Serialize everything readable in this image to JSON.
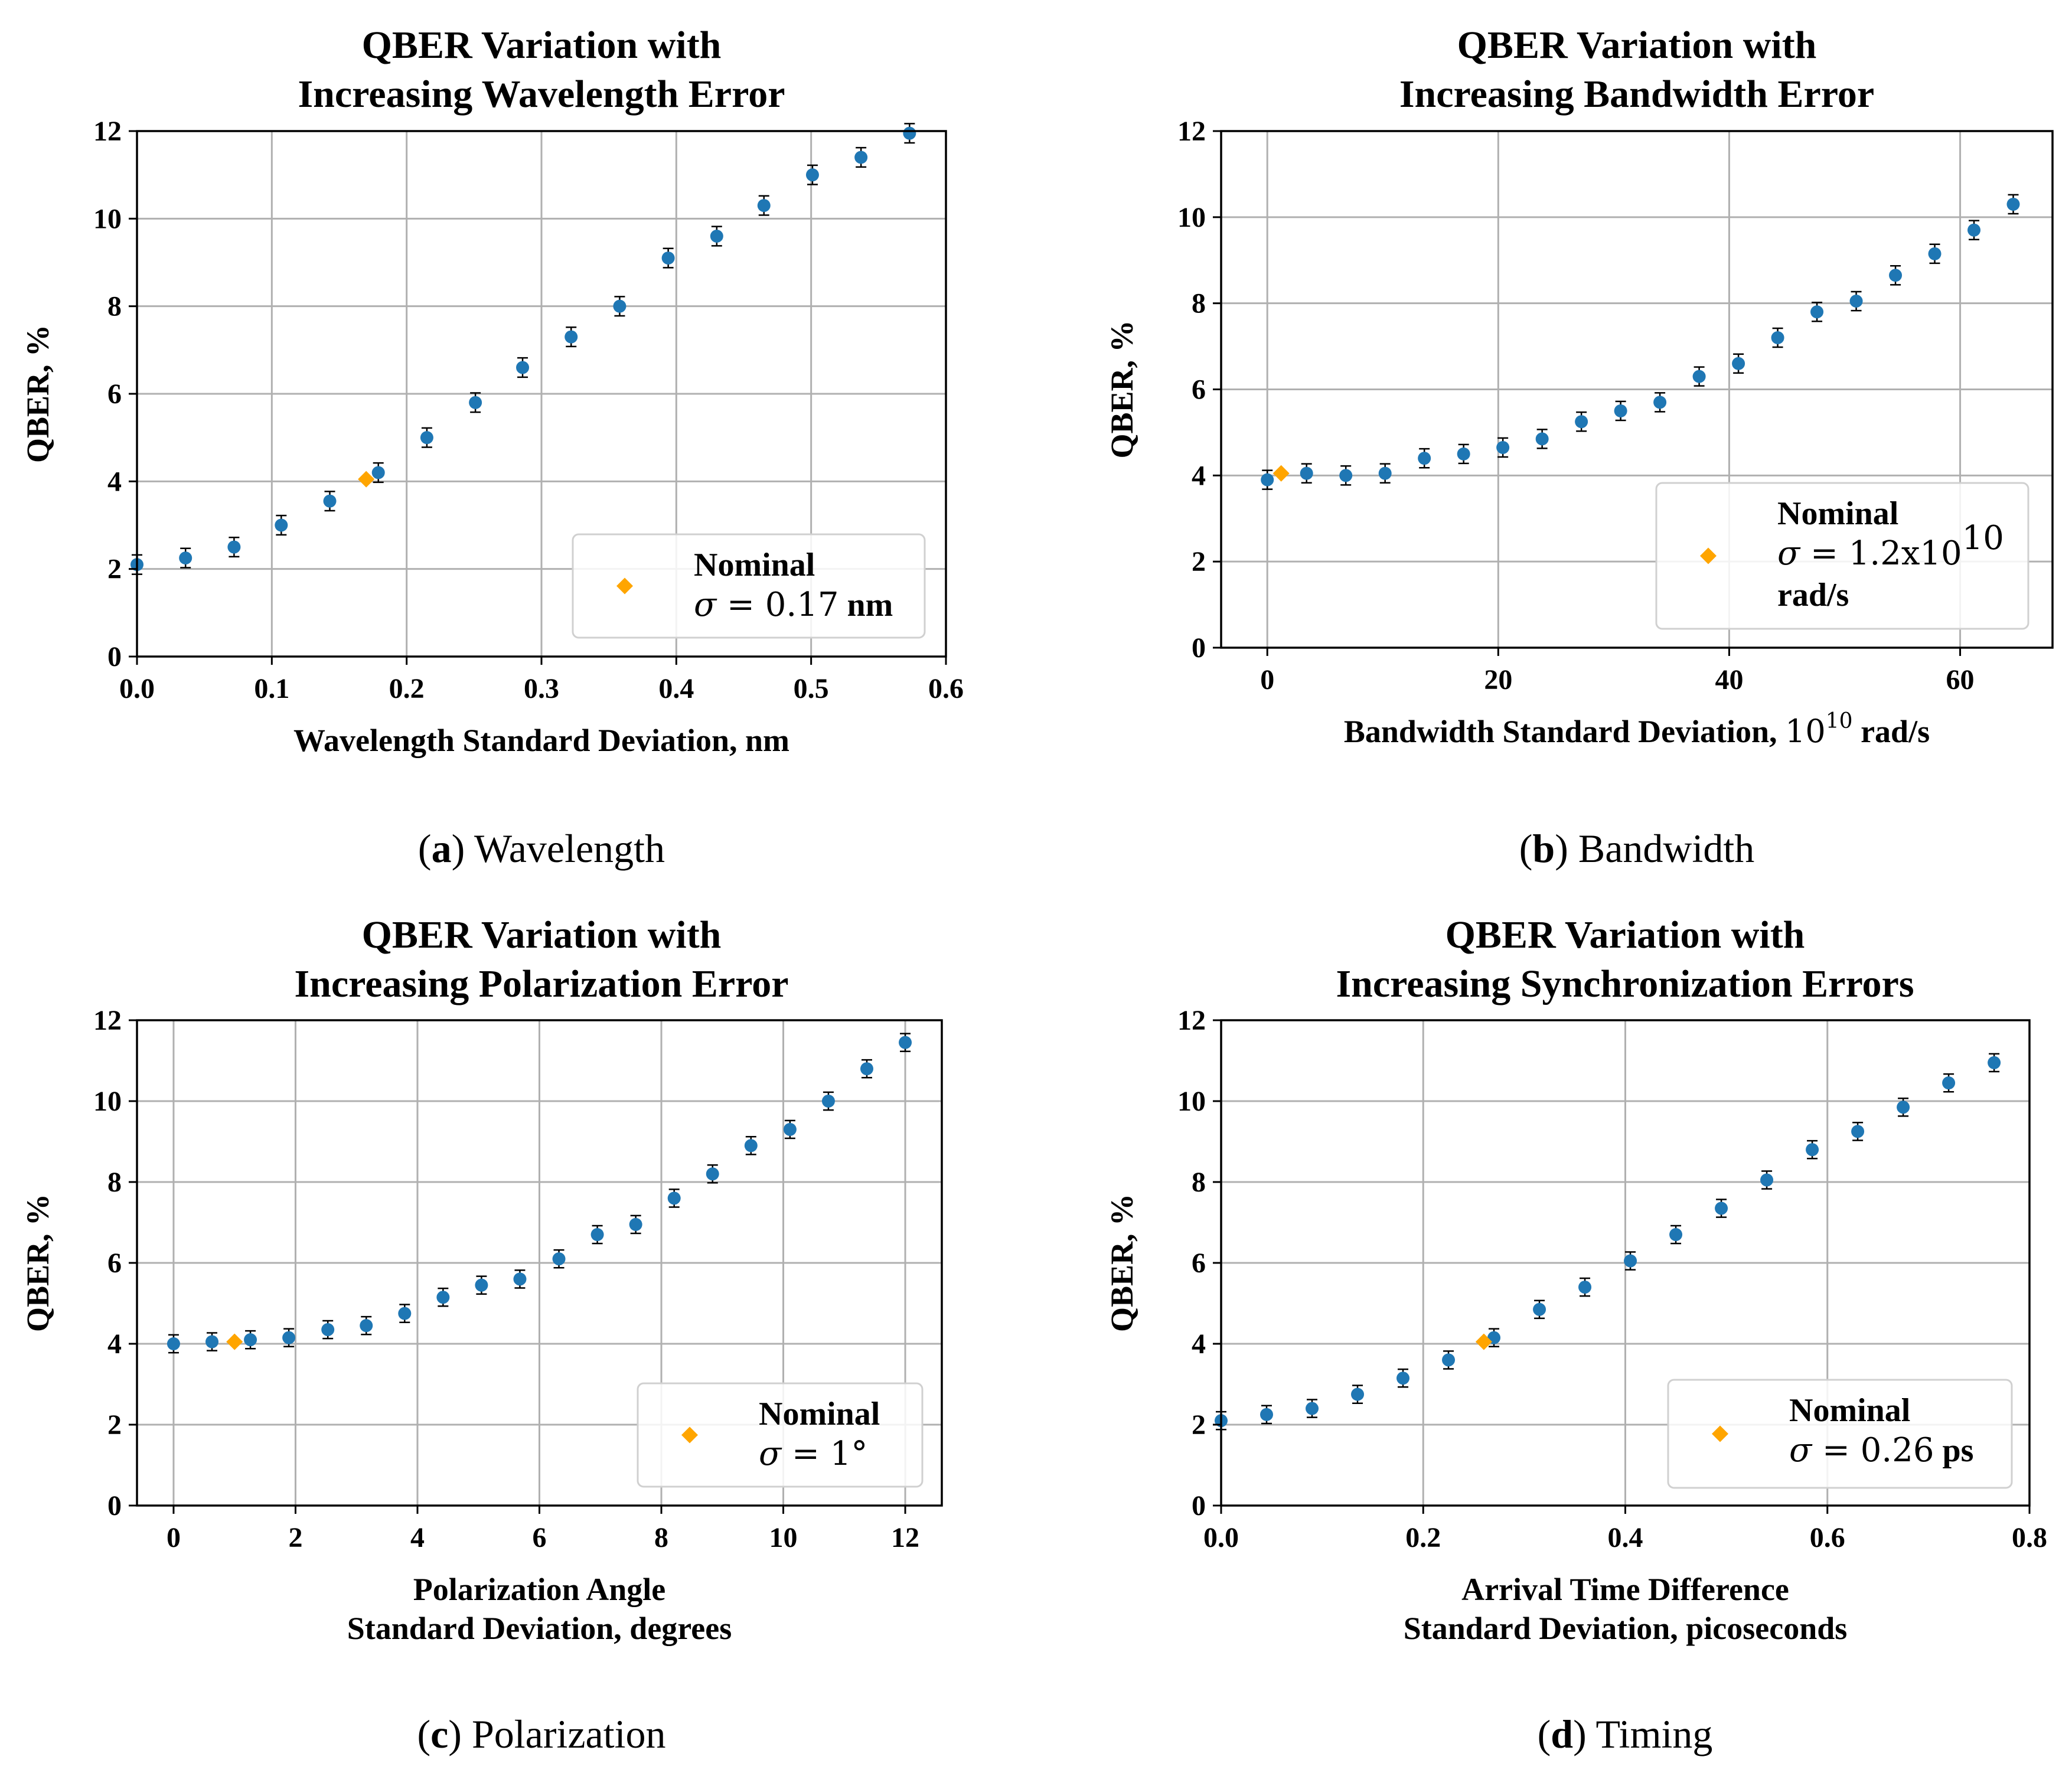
{
  "colors": {
    "data": "#1f77b4",
    "nominal": "#ffa500",
    "grid": "#b0b0b0",
    "axes": "#000000",
    "error": "#000000"
  },
  "chart_data": [
    {
      "id": "a",
      "type": "scatter",
      "title": [
        "QBER Variation with",
        "Increasing Wavelength Error"
      ],
      "xlabel": [
        "Wavelength Standard Deviation, nm"
      ],
      "ylabel": "QBER, %",
      "xlim": [
        0.0,
        0.6
      ],
      "ylim": [
        0,
        12
      ],
      "xticks": [
        0.0,
        0.1,
        0.2,
        0.3,
        0.4,
        0.5,
        0.6
      ],
      "xtick_labels": [
        "0.0",
        "0.1",
        "0.2",
        "0.3",
        "0.4",
        "0.5",
        "0.6"
      ],
      "yticks": [
        0,
        2,
        4,
        6,
        8,
        10,
        12
      ],
      "ytick_labels": [
        "0",
        "2",
        "4",
        "6",
        "8",
        "10",
        "12"
      ],
      "grid": true,
      "legend_position": "lower-right",
      "series": [
        {
          "name": "data",
          "x": [
            0.0,
            0.036,
            0.072,
            0.107,
            0.143,
            0.179,
            0.215,
            0.251,
            0.286,
            0.322,
            0.358,
            0.394,
            0.43,
            0.465,
            0.501,
            0.537,
            0.573
          ],
          "y": [
            2.1,
            2.25,
            2.5,
            3.0,
            3.55,
            4.2,
            5.0,
            5.8,
            6.6,
            7.3,
            8.0,
            9.1,
            9.6,
            10.3,
            11.0,
            11.4,
            11.95
          ],
          "yerr": 0.22
        }
      ],
      "nominal": {
        "x": 0.17,
        "y": 4.05
      },
      "legend": {
        "title": "Nominal",
        "sigma": "σ",
        "equals": " = 0.17",
        "unit": " nm"
      },
      "caption": {
        "letter": "a",
        "text": "Wavelength"
      }
    },
    {
      "id": "b",
      "type": "scatter",
      "title": [
        "QBER Variation with",
        "Increasing Bandwidth Error"
      ],
      "xlabel": [
        "Bandwidth Standard Deviation, 10^10 rad/s"
      ],
      "ylabel": "QBER, %",
      "xlim": [
        -4,
        68
      ],
      "ylim": [
        0,
        12
      ],
      "xticks": [
        0,
        20,
        40,
        60
      ],
      "xtick_labels": [
        "0",
        "20",
        "40",
        "60"
      ],
      "yticks": [
        0,
        2,
        4,
        6,
        8,
        10,
        12
      ],
      "ytick_labels": [
        "0",
        "2",
        "4",
        "6",
        "8",
        "10",
        "12"
      ],
      "grid": true,
      "legend_position": "lower-right",
      "series": [
        {
          "name": "data",
          "x": [
            0.0,
            3.4,
            6.8,
            10.2,
            13.6,
            17.0,
            20.4,
            23.8,
            27.2,
            30.6,
            34.0,
            37.4,
            40.8,
            44.2,
            47.6,
            51.0,
            54.4,
            57.8,
            61.2,
            64.6
          ],
          "y": [
            3.9,
            4.05,
            4.0,
            4.05,
            4.4,
            4.5,
            4.65,
            4.85,
            5.25,
            5.5,
            5.7,
            6.3,
            6.6,
            7.2,
            7.8,
            8.05,
            8.65,
            9.15,
            9.7,
            10.3
          ],
          "yerr": 0.22
        }
      ],
      "nominal": {
        "x": 1.2,
        "y": 4.05
      },
      "legend": {
        "title": "Nominal",
        "sigma": "σ",
        "equals": " = 1.2x10",
        "sup": "10",
        "unit": "rad/s"
      },
      "caption": {
        "letter": "b",
        "text": "Bandwidth"
      }
    },
    {
      "id": "c",
      "type": "scatter",
      "title": [
        "QBER Variation with",
        "Increasing Polarization Error"
      ],
      "xlabel": [
        "Polarization Angle",
        "Standard Deviation, degrees"
      ],
      "ylabel": "QBER, %",
      "xlim": [
        -0.6,
        12.6
      ],
      "ylim": [
        0,
        12
      ],
      "xticks": [
        0,
        2,
        4,
        6,
        8,
        10,
        12
      ],
      "xtick_labels": [
        "0",
        "2",
        "4",
        "6",
        "8",
        "10",
        "12"
      ],
      "yticks": [
        0,
        2,
        4,
        6,
        8,
        10,
        12
      ],
      "ytick_labels": [
        "0",
        "2",
        "4",
        "6",
        "8",
        "10",
        "12"
      ],
      "grid": true,
      "legend_position": "lower-right",
      "series": [
        {
          "name": "data",
          "x": [
            0.0,
            0.63,
            1.26,
            1.89,
            2.53,
            3.16,
            3.79,
            4.42,
            5.05,
            5.68,
            6.32,
            6.95,
            7.58,
            8.21,
            8.84,
            9.47,
            10.11,
            10.74,
            11.37,
            12.0
          ],
          "y": [
            4.0,
            4.05,
            4.1,
            4.15,
            4.35,
            4.45,
            4.75,
            5.15,
            5.45,
            5.6,
            6.1,
            6.7,
            6.95,
            7.6,
            8.2,
            8.9,
            9.3,
            10.0,
            10.8,
            11.45
          ],
          "yerr": 0.22
        }
      ],
      "nominal": {
        "x": 1.0,
        "y": 4.05
      },
      "legend": {
        "title": "Nominal",
        "sigma": "σ",
        "equals": " = 1°",
        "unit": ""
      },
      "caption": {
        "letter": "c",
        "text": "Polarization"
      }
    },
    {
      "id": "d",
      "type": "scatter",
      "title": [
        "QBER Variation with",
        "Increasing Synchronization Errors"
      ],
      "xlabel": [
        "Arrival Time Difference",
        "Standard Deviation, picoseconds"
      ],
      "ylabel": "QBER, %",
      "xlim": [
        0.0,
        0.8
      ],
      "ylim": [
        0,
        12
      ],
      "xticks": [
        0.0,
        0.2,
        0.4,
        0.6,
        0.8
      ],
      "xtick_labels": [
        "0.0",
        "0.2",
        "0.4",
        "0.6",
        "0.8"
      ],
      "yticks": [
        0,
        2,
        4,
        6,
        8,
        10,
        12
      ],
      "ytick_labels": [
        "0",
        "2",
        "4",
        "6",
        "8",
        "10",
        "12"
      ],
      "grid": true,
      "legend_position": "lower-right",
      "series": [
        {
          "name": "data",
          "x": [
            0.0,
            0.045,
            0.09,
            0.135,
            0.18,
            0.225,
            0.27,
            0.315,
            0.36,
            0.405,
            0.45,
            0.495,
            0.54,
            0.585,
            0.63,
            0.675,
            0.72,
            0.765
          ],
          "y": [
            2.1,
            2.25,
            2.4,
            2.75,
            3.15,
            3.6,
            4.15,
            4.85,
            5.4,
            6.05,
            6.7,
            7.35,
            8.05,
            8.8,
            9.25,
            9.85,
            10.45,
            10.95
          ],
          "yerr": 0.22
        }
      ],
      "nominal": {
        "x": 0.26,
        "y": 4.05
      },
      "legend": {
        "title": "Nominal",
        "sigma": "σ",
        "equals": " = 0.26",
        "unit": " ps"
      },
      "caption": {
        "letter": "d",
        "text": "Timing"
      }
    }
  ]
}
